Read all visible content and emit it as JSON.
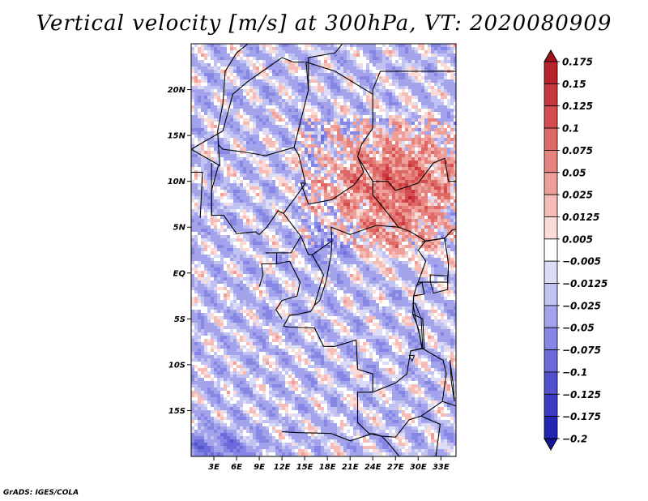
{
  "title": "Vertical velocity [m/s] at 300hPa, VT: 2020080909",
  "credit": "GrADS: IGES/COLA",
  "map": {
    "lon_range": [
      0,
      35
    ],
    "lat_range": [
      -20,
      25
    ],
    "lat_ticks": [
      "20N",
      "15N",
      "10N",
      "5N",
      "EQ",
      "5S",
      "10S",
      "15S"
    ],
    "lat_tick_values": [
      20,
      15,
      10,
      5,
      0,
      -5,
      -10,
      -15
    ],
    "lon_ticks": [
      "3E",
      "6E",
      "9E",
      "12E",
      "15E",
      "18E",
      "21E",
      "24E",
      "27E",
      "30E",
      "33E"
    ],
    "lon_tick_values": [
      3,
      6,
      9,
      12,
      15,
      18,
      21,
      24,
      27,
      30,
      33
    ],
    "field": "vertical velocity",
    "field_description": "shaded noisy field: strong positive (red) over northeast Sahel and Sudan region 5N-17N, negative (blue) over west and south, streaky diagonal bands"
  },
  "colorbar": {
    "labels": [
      "0.175",
      "0.15",
      "0.125",
      "0.1",
      "0.075",
      "0.05",
      "0.025",
      "0.0125",
      "0.005",
      "−0.005",
      "−0.0125",
      "−0.025",
      "−0.05",
      "−0.075",
      "−0.1",
      "−0.125",
      "−0.175",
      "−0.2"
    ],
    "colors": [
      "#a0141e",
      "#b8232c",
      "#c8393e",
      "#d44e50",
      "#dd6865",
      "#e5837e",
      "#ee9f99",
      "#f4bdb8",
      "#fadbd8",
      "#ffffff",
      "#dcdcf6",
      "#c2c2f2",
      "#a3a3ec",
      "#8686e4",
      "#6b6bda",
      "#5252cf",
      "#3a3ac2",
      "#2424b2",
      "#15159a"
    ]
  }
}
